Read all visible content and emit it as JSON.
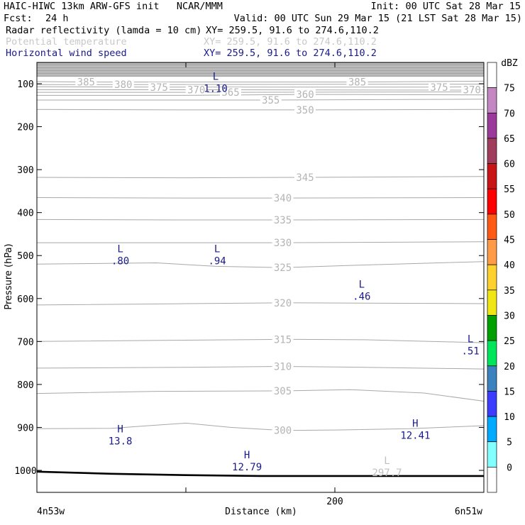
{
  "header": {
    "line1_left": "HAIC-HIWC 13km ARW-GFS init   NCAR/MMM",
    "line1_right": "Init: 00 UTC Sat 28 Mar 15",
    "fcst_label": "Fcst:",
    "fcst_value": "24 h",
    "valid": "Valid: 00 UTC Sun 29 Mar 15 (21 LST Sat 28 Mar 15)",
    "fields": [
      {
        "name": "Radar reflectivity (lamda = 10 cm)",
        "xy": "XY= 259.5, 91.6 to 274.6,110.2",
        "color": "#000000"
      },
      {
        "name": "Potential temperature",
        "xy": "XY= 259.5, 91.6 to 274.6,110.2",
        "color": "#c8c8c8"
      },
      {
        "name": "Horizontal wind speed",
        "xy": "XY= 259.5, 91.6 to 274.6,110.2",
        "color": "#1a1a8c"
      }
    ]
  },
  "chart_data": {
    "type": "cross-section",
    "xlabel": "Distance (km)",
    "ylabel": "Pressure (hPa)",
    "xlim": [
      0,
      300
    ],
    "ylim": [
      1050,
      50
    ],
    "x_ticks": [
      0,
      100,
      200,
      300
    ],
    "x_tick_labels": [
      {
        "x": 200,
        "label": "200"
      }
    ],
    "x_endpoint_labels": {
      "left": "4n53w",
      "right": "6n51w"
    },
    "y_ticks": [
      100,
      200,
      300,
      400,
      500,
      600,
      700,
      800,
      900,
      1000
    ],
    "theta_contours": [
      {
        "value": 300,
        "label": "300",
        "label_x": 165,
        "points": [
          [
            0,
            903
          ],
          [
            50,
            902
          ],
          [
            75,
            896
          ],
          [
            100,
            890
          ],
          [
            130,
            900
          ],
          [
            165,
            907
          ],
          [
            200,
            906
          ],
          [
            250,
            903
          ],
          [
            300,
            896
          ]
        ]
      },
      {
        "value": 305,
        "label": "305",
        "label_x": 165,
        "points": [
          [
            0,
            821
          ],
          [
            80,
            816
          ],
          [
            165,
            815
          ],
          [
            210,
            812
          ],
          [
            260,
            820
          ],
          [
            300,
            839
          ]
        ]
      },
      {
        "value": 310,
        "label": "310",
        "label_x": 165,
        "points": [
          [
            0,
            762
          ],
          [
            100,
            760
          ],
          [
            165,
            758
          ],
          [
            220,
            760
          ],
          [
            300,
            764
          ]
        ]
      },
      {
        "value": 315,
        "label": "315",
        "label_x": 165,
        "points": [
          [
            0,
            700
          ],
          [
            100,
            697
          ],
          [
            165,
            695
          ],
          [
            220,
            696
          ],
          [
            300,
            703
          ]
        ]
      },
      {
        "value": 320,
        "label": "320",
        "label_x": 165,
        "points": [
          [
            0,
            615
          ],
          [
            100,
            612
          ],
          [
            165,
            610
          ],
          [
            300,
            612
          ]
        ]
      },
      {
        "value": 325,
        "label": "325",
        "label_x": 165,
        "points": [
          [
            0,
            520
          ],
          [
            80,
            517
          ],
          [
            120,
            525
          ],
          [
            165,
            528
          ],
          [
            220,
            522
          ],
          [
            300,
            514
          ]
        ]
      },
      {
        "value": 330,
        "label": "330",
        "label_x": 165,
        "points": [
          [
            0,
            470
          ],
          [
            100,
            470
          ],
          [
            165,
            470
          ],
          [
            300,
            468
          ]
        ]
      },
      {
        "value": 335,
        "label": "335",
        "label_x": 165,
        "points": [
          [
            0,
            416
          ],
          [
            100,
            417
          ],
          [
            165,
            417
          ],
          [
            300,
            416
          ]
        ]
      },
      {
        "value": 340,
        "label": "340",
        "label_x": 165,
        "points": [
          [
            0,
            365
          ],
          [
            100,
            366
          ],
          [
            165,
            366
          ],
          [
            300,
            365
          ]
        ]
      },
      {
        "value": 345,
        "label": "345",
        "label_x": 180,
        "points": [
          [
            0,
            318
          ],
          [
            100,
            319
          ],
          [
            180,
            318
          ],
          [
            300,
            316
          ]
        ]
      },
      {
        "value": 350,
        "label": "350",
        "label_x": 180,
        "points": [
          [
            0,
            160
          ],
          [
            100,
            161
          ],
          [
            180,
            161
          ],
          [
            300,
            160
          ]
        ]
      },
      {
        "value": 355,
        "label": "355",
        "label_x": 157,
        "points": [
          [
            0,
            138
          ],
          [
            80,
            138
          ],
          [
            157,
            138
          ],
          [
            300,
            136
          ]
        ]
      },
      {
        "value": 360,
        "label": "360",
        "label_x": 180,
        "points": [
          [
            0,
            127
          ],
          [
            100,
            127
          ],
          [
            180,
            125
          ],
          [
            300,
            126
          ]
        ]
      },
      {
        "value": 365,
        "label": "365",
        "label_x": 130,
        "points": [
          [
            0,
            120
          ],
          [
            130,
            120
          ],
          [
            300,
            119
          ]
        ]
      },
      {
        "value": 370,
        "label": "370",
        "label_x": 107,
        "points": [
          [
            0,
            114
          ],
          [
            107,
            114
          ],
          [
            290,
            115
          ],
          [
            300,
            114
          ]
        ]
      },
      {
        "value": 375,
        "label": "375",
        "label_x": 82,
        "points": [
          [
            0,
            107
          ],
          [
            82,
            108
          ],
          [
            270,
            108
          ],
          [
            300,
            107
          ]
        ]
      },
      {
        "value": 380,
        "label": "380",
        "label_x": 58,
        "points": [
          [
            0,
            102
          ],
          [
            58,
            102
          ],
          [
            300,
            101
          ]
        ]
      },
      {
        "value": 385,
        "label": "385",
        "label_x": 33,
        "points": [
          [
            0,
            95
          ],
          [
            33,
            96
          ],
          [
            215,
            96
          ],
          [
            300,
            94
          ]
        ]
      }
    ],
    "theta_right_labels": [
      {
        "label": "385",
        "x": 215,
        "p": 96
      },
      {
        "label": "375",
        "x": 270,
        "p": 108
      },
      {
        "label": "370",
        "x": 292,
        "p": 114
      }
    ],
    "theta_minimum": {
      "letter": "L",
      "value": "297.7",
      "x": 235,
      "p": 1008
    },
    "wind_extrema": [
      {
        "type": "L",
        "value": "1.10",
        "x": 120,
        "p": 104
      },
      {
        "type": "L",
        "value": ".80",
        "x": 56,
        "p": 505
      },
      {
        "type": "L",
        "value": ".94",
        "x": 121,
        "p": 505
      },
      {
        "type": "L",
        "value": ".46",
        "x": 218,
        "p": 588
      },
      {
        "type": "L",
        "value": ".51",
        "x": 291,
        "p": 715
      },
      {
        "type": "H",
        "value": "13.8",
        "x": 56,
        "p": 925
      },
      {
        "type": "H",
        "value": "12.79",
        "x": 141,
        "p": 985
      },
      {
        "type": "H",
        "value": "12.41",
        "x": 254,
        "p": 912
      }
    ],
    "terrain": [
      [
        0,
        1003
      ],
      [
        50,
        1008
      ],
      [
        100,
        1011
      ],
      [
        150,
        1013
      ],
      [
        200,
        1013
      ],
      [
        300,
        1013
      ]
    ],
    "stratosphere_top_p": 85,
    "colorbar": {
      "unit": "dBZ",
      "levels": [
        "75",
        "70",
        "65",
        "60",
        "55",
        "50",
        "45",
        "40",
        "35",
        "30",
        "25",
        "20",
        "15",
        "10",
        "5",
        "0"
      ],
      "colors": [
        "#ffffff",
        "#c487c4",
        "#9c3a9c",
        "#a03c5c",
        "#c81414",
        "#ff0000",
        "#ff5a14",
        "#ff9b46",
        "#ffd12e",
        "#f0e614",
        "#00a000",
        "#00e65a",
        "#3c82be",
        "#3c3cff",
        "#00aaff",
        "#82ffff",
        "#ffffff"
      ]
    }
  }
}
